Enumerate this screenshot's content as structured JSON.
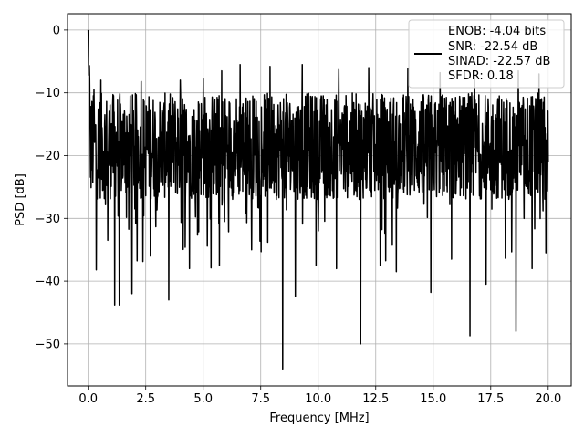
{
  "chart_data": {
    "type": "line",
    "title": "",
    "xlabel": "Frequency [MHz]",
    "ylabel": "PSD [dB]",
    "xlim": [
      -0.9,
      21.0
    ],
    "ylim": [
      -56.7,
      2.6
    ],
    "x_ticks": [
      0.0,
      2.5,
      5.0,
      7.5,
      10.0,
      12.5,
      15.0,
      17.5,
      20.0
    ],
    "x_tick_labels": [
      "0.0",
      "2.5",
      "5.0",
      "7.5",
      "10.0",
      "12.5",
      "15.0",
      "17.5",
      "20.0"
    ],
    "y_ticks": [
      0,
      -10,
      -20,
      -30,
      -40,
      -50
    ],
    "y_tick_labels": [
      "0",
      "−10",
      "−20",
      "−30",
      "−40",
      "−50"
    ],
    "grid": true,
    "legend_position": "top-right",
    "legend_lines": [
      "ENOB: -4.04 bits",
      "SNR: -22.54 dB",
      "SINAD: -22.57 dB",
      "SFDR: 0.18"
    ],
    "line_color": "#000000",
    "series": [
      {
        "x_start": 0.0,
        "x_end": 20.0,
        "n_points": 1600,
        "noise_floor_db": -18.5,
        "peak": [
          0.0,
          0.0
        ],
        "deep_dips": [
          [
            0.35,
            -38.2
          ],
          [
            0.55,
            -39.5
          ],
          [
            0.85,
            -33.5
          ],
          [
            1.15,
            -43.8
          ],
          [
            1.35,
            -43.8
          ],
          [
            1.9,
            -42.0
          ],
          [
            2.7,
            -36.0
          ],
          [
            3.5,
            -43.0
          ],
          [
            4.4,
            -38.0
          ],
          [
            5.7,
            -37.5
          ],
          [
            6.6,
            -36.0
          ],
          [
            7.1,
            -35.0
          ],
          [
            7.8,
            -33.8
          ],
          [
            8.45,
            -54.0
          ],
          [
            9.0,
            -42.5
          ],
          [
            9.9,
            -37.5
          ],
          [
            10.8,
            -38.0
          ],
          [
            11.85,
            -50.0
          ],
          [
            12.7,
            -37.5
          ],
          [
            13.4,
            -38.5
          ],
          [
            14.9,
            -41.8
          ],
          [
            15.8,
            -36.5
          ],
          [
            16.6,
            -48.7
          ],
          [
            17.3,
            -40.5
          ],
          [
            18.6,
            -48.0
          ],
          [
            19.3,
            -38.0
          ],
          [
            19.9,
            -35.5
          ]
        ],
        "upper_peaks": [
          [
            0.25,
            -9.5
          ],
          [
            0.55,
            -8.0
          ],
          [
            2.3,
            -8.2
          ],
          [
            4.0,
            -8.0
          ],
          [
            5.0,
            -7.8
          ],
          [
            5.8,
            -6.5
          ],
          [
            6.6,
            -5.5
          ],
          [
            7.9,
            -5.8
          ],
          [
            9.3,
            -5.5
          ],
          [
            10.9,
            -6.3
          ],
          [
            12.2,
            -6.0
          ],
          [
            13.9,
            -6.2
          ],
          [
            15.3,
            -6.8
          ],
          [
            16.8,
            -6.5
          ],
          [
            18.7,
            -6.5
          ],
          [
            19.6,
            -7.0
          ]
        ]
      }
    ]
  }
}
